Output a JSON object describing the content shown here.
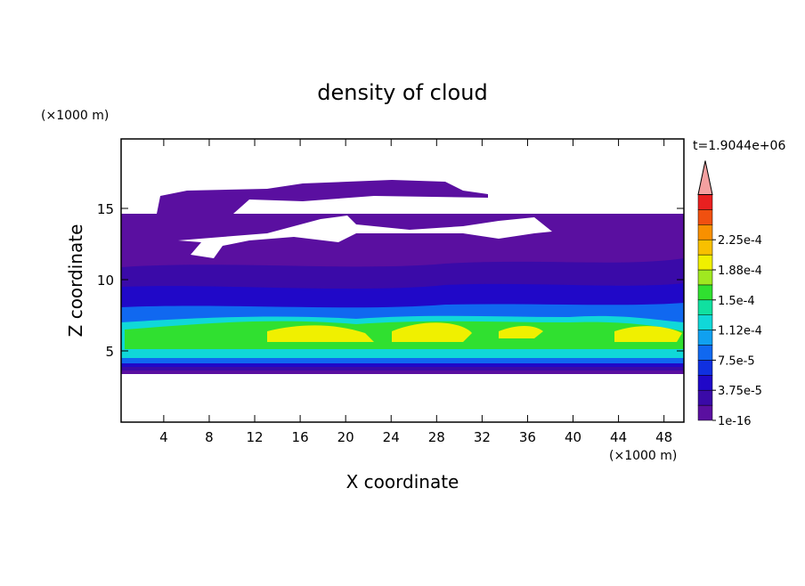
{
  "chart_data": {
    "type": "contour",
    "title": "density of cloud",
    "x_label": "X coordinate",
    "y_label": "Z coordinate",
    "x_unit": "(×1000 m)",
    "y_unit": "(×1000 m)",
    "time_label": "t=1.9044e+06",
    "xlim": [
      0.25,
      49.75
    ],
    "xticks": [
      4,
      8,
      12,
      16,
      20,
      24,
      28,
      32,
      36,
      40,
      44,
      48
    ],
    "ylim": [
      0,
      19.875
    ],
    "yticks": [
      5,
      10,
      15
    ],
    "colorbar": {
      "levels": [
        {
          "value": 1e-16,
          "label": "1e-16"
        },
        {
          "value": 3.75e-05,
          "label": "3.75e-5"
        },
        {
          "value": 7.5e-05,
          "label": "7.5e-5"
        },
        {
          "value": 0.000112,
          "label": "1.12e-4"
        },
        {
          "value": 0.00015,
          "label": "1.5e-4"
        },
        {
          "value": 0.000188,
          "label": "1.88e-4"
        },
        {
          "value": 0.000225,
          "label": "2.25e-4"
        }
      ],
      "colors": [
        "#5a0fa0",
        "#3a0aa8",
        "#2008c8",
        "#1030e0",
        "#1068f0",
        "#10a0f0",
        "#10d8d8",
        "#10e0a0",
        "#30e030",
        "#a0e820",
        "#f0f000",
        "#f8c000",
        "#f89000",
        "#f05010",
        "#e82020"
      ],
      "extend_color": "#f4a0a0"
    }
  }
}
